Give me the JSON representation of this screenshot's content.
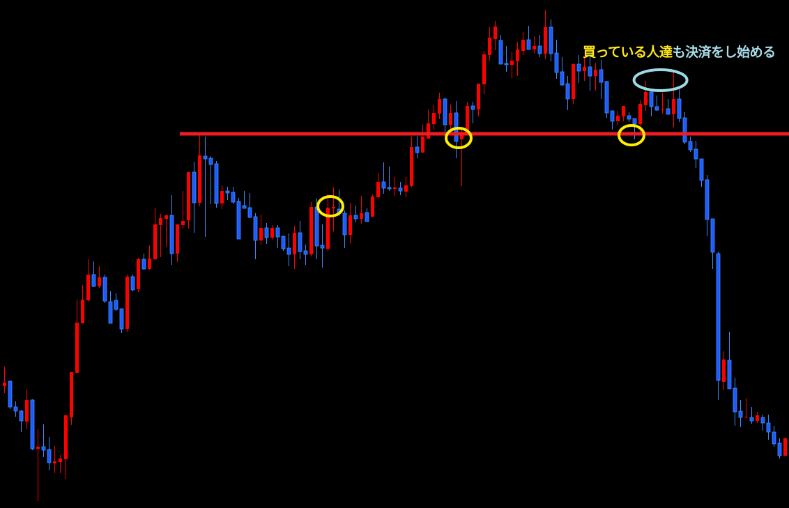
{
  "chart_data": {
    "type": "candlestick",
    "background": "#000000",
    "colors": {
      "up": "#FF0000",
      "down_fill": "#1E5BFF",
      "down_edge": "#3C8CFF",
      "level_line": "#EE1C25",
      "marker_yellow": "#FFEE00",
      "marker_lightblue": "#9ED8E6"
    },
    "grid": false,
    "axes_visible": false,
    "ylim": [
      0,
      72.9
    ],
    "candles": [
      [
        17.5,
        20.3,
        16.5,
        18.0
      ],
      [
        18.2,
        18.3,
        14.2,
        14.5
      ],
      [
        14.5,
        15.3,
        13.1,
        13.9
      ],
      [
        13.9,
        14.1,
        10.9,
        12.5
      ],
      [
        12.4,
        17.0,
        11.3,
        15.5
      ],
      [
        15.5,
        15.6,
        8.3,
        8.5
      ],
      [
        8.5,
        11.3,
        1.0,
        8.8
      ],
      [
        8.8,
        12.0,
        7.3,
        8.3
      ],
      [
        8.4,
        10.2,
        5.4,
        6.5
      ],
      [
        6.4,
        8.9,
        5.0,
        6.7
      ],
      [
        6.6,
        7.6,
        5.0,
        7.1
      ],
      [
        7.0,
        13.4,
        4.2,
        13.3
      ],
      [
        13.0,
        19.5,
        11.9,
        19.5
      ],
      [
        19.4,
        29.9,
        19.4,
        26.6
      ],
      [
        26.5,
        32.0,
        26.5,
        29.9
      ],
      [
        29.8,
        35.7,
        29.6,
        33.5
      ],
      [
        33.5,
        35.4,
        31.7,
        31.8
      ],
      [
        31.8,
        34.7,
        31.6,
        33.1
      ],
      [
        33.1,
        33.5,
        29.4,
        29.7
      ],
      [
        29.6,
        31.1,
        26.5,
        26.5
      ],
      [
        29.8,
        30.8,
        28.3,
        28.5
      ],
      [
        28.6,
        28.6,
        25.1,
        25.7
      ],
      [
        25.7,
        33.5,
        25.3,
        33.2
      ],
      [
        33.2,
        33.5,
        31.1,
        31.3
      ],
      [
        31.4,
        35.9,
        31.0,
        35.7
      ],
      [
        35.7,
        36.5,
        34.2,
        34.3
      ],
      [
        34.3,
        37.7,
        34.2,
        35.8
      ],
      [
        35.7,
        43.1,
        35.6,
        40.7
      ],
      [
        40.6,
        42.2,
        36.0,
        41.6
      ],
      [
        41.5,
        42.1,
        37.5,
        42.0
      ],
      [
        42.0,
        44.9,
        34.9,
        36.5
      ],
      [
        36.5,
        40.7,
        35.3,
        40.7
      ],
      [
        40.6,
        45.5,
        40.1,
        41.2
      ],
      [
        41.3,
        48.2,
        40.1,
        48.2
      ],
      [
        48.2,
        49.7,
        39.5,
        43.8
      ],
      [
        43.8,
        53.5,
        43.3,
        50.6
      ],
      [
        50.5,
        53.3,
        38.9,
        50.1
      ],
      [
        50.2,
        50.5,
        43.6,
        49.3
      ],
      [
        49.4,
        49.8,
        43.1,
        43.7
      ],
      [
        43.7,
        46.3,
        42.9,
        45.5
      ],
      [
        45.5,
        46.1,
        44.2,
        45.2
      ],
      [
        45.3,
        46.1,
        43.6,
        43.9
      ],
      [
        44.0,
        44.5,
        38.6,
        38.6
      ],
      [
        43.4,
        45.5,
        43.0,
        43.0
      ],
      [
        43.1,
        45.2,
        41.6,
        41.7
      ],
      [
        41.8,
        42.3,
        35.7,
        38.4
      ],
      [
        38.4,
        42.1,
        37.8,
        40.2
      ],
      [
        40.2,
        40.9,
        37.9,
        38.8
      ],
      [
        38.8,
        40.6,
        38.5,
        40.2
      ],
      [
        40.2,
        40.6,
        37.3,
        38.9
      ],
      [
        39.0,
        39.1,
        36.9,
        37.2
      ],
      [
        37.3,
        39.4,
        34.7,
        36.4
      ],
      [
        36.4,
        40.5,
        34.3,
        39.5
      ],
      [
        39.5,
        41.2,
        35.7,
        36.8
      ],
      [
        36.9,
        37.8,
        34.9,
        36.4
      ],
      [
        36.4,
        43.9,
        36.1,
        43.2
      ],
      [
        43.2,
        44.4,
        35.7,
        37.6
      ],
      [
        37.7,
        40.7,
        34.5,
        37.3
      ],
      [
        37.2,
        45.1,
        36.9,
        43.1
      ],
      [
        43.0,
        46.0,
        39.7,
        43.2
      ],
      [
        42.9,
        45.7,
        41.9,
        42.3
      ],
      [
        42.3,
        42.7,
        37.3,
        39.2
      ],
      [
        39.2,
        43.8,
        38.0,
        42.0
      ],
      [
        42.0,
        43.4,
        41.0,
        41.5
      ],
      [
        41.5,
        44.8,
        40.8,
        42.3
      ],
      [
        42.4,
        43.0,
        41.1,
        41.1
      ],
      [
        41.8,
        45.0,
        41.8,
        44.7
      ],
      [
        44.6,
        48.1,
        44.4,
        46.8
      ],
      [
        46.8,
        49.6,
        45.1,
        45.9
      ],
      [
        46.0,
        49.0,
        45.5,
        45.8
      ],
      [
        45.8,
        47.5,
        44.8,
        46.0
      ],
      [
        45.9,
        46.8,
        44.9,
        45.5
      ],
      [
        45.4,
        47.5,
        44.6,
        46.3
      ],
      [
        46.2,
        53.3,
        46.0,
        51.8
      ],
      [
        51.8,
        53.4,
        50.2,
        51.0
      ],
      [
        51.0,
        55.0,
        51.0,
        53.3
      ],
      [
        53.0,
        57.2,
        53.0,
        55.2
      ],
      [
        55.1,
        57.8,
        54.3,
        56.7
      ],
      [
        56.6,
        59.6,
        55.8,
        58.7
      ],
      [
        58.7,
        58.9,
        53.7,
        55.0
      ],
      [
        55.0,
        57.9,
        53.7,
        56.7
      ],
      [
        56.7,
        58.4,
        50.2,
        52.6
      ],
      [
        52.9,
        54.6,
        46.2,
        53.7
      ],
      [
        53.9,
        58.3,
        53.7,
        57.7
      ],
      [
        57.7,
        58.3,
        55.2,
        57.2
      ],
      [
        57.2,
        60.9,
        56.2,
        60.9
      ],
      [
        60.8,
        65.6,
        59.4,
        65.1
      ],
      [
        65.0,
        69.0,
        64.2,
        67.5
      ],
      [
        67.3,
        69.9,
        65.7,
        69.1
      ],
      [
        67.1,
        67.9,
        63.7,
        63.7
      ],
      [
        63.8,
        66.3,
        62.6,
        63.6
      ],
      [
        63.6,
        65.4,
        61.7,
        64.2
      ],
      [
        64.1,
        66.9,
        62.0,
        65.8
      ],
      [
        65.6,
        68.3,
        65.0,
        67.2
      ],
      [
        67.2,
        69.2,
        65.8,
        65.8
      ],
      [
        65.8,
        67.7,
        65.2,
        66.3
      ],
      [
        66.3,
        67.9,
        64.7,
        65.2
      ],
      [
        65.2,
        71.5,
        64.4,
        69.0
      ],
      [
        69.0,
        70.1,
        64.1,
        65.2
      ],
      [
        65.3,
        67.2,
        61.6,
        62.5
      ],
      [
        62.6,
        64.7,
        60.6,
        60.7
      ],
      [
        60.9,
        62.0,
        57.1,
        58.7
      ],
      [
        58.7,
        63.8,
        58.0,
        63.7
      ],
      [
        63.7,
        65.0,
        61.0,
        62.7
      ],
      [
        62.7,
        64.6,
        61.3,
        63.3
      ],
      [
        63.3,
        65.0,
        59.9,
        62.0
      ],
      [
        62.0,
        63.9,
        59.9,
        62.9
      ],
      [
        62.9,
        64.3,
        58.7,
        61.1
      ],
      [
        61.2,
        61.3,
        56.0,
        56.7
      ],
      [
        57.0,
        57.0,
        54.3,
        55.5
      ],
      [
        55.5,
        57.0,
        55.0,
        56.3
      ],
      [
        56.2,
        57.7,
        55.5,
        57.7
      ],
      [
        56.3,
        56.8,
        55.4,
        55.8
      ],
      [
        55.9,
        55.9,
        52.9,
        55.1
      ],
      [
        55.1,
        58.6,
        53.6,
        58.0
      ],
      [
        57.8,
        61.3,
        57.0,
        59.7
      ],
      [
        59.7,
        60.1,
        56.2,
        57.6
      ],
      [
        57.6,
        59.2,
        57.0,
        57.1
      ],
      [
        57.2,
        59.6,
        56.6,
        57.3
      ],
      [
        57.3,
        58.7,
        56.5,
        56.5
      ],
      [
        56.5,
        62.5,
        54.6,
        58.7
      ],
      [
        58.7,
        60.1,
        55.4,
        55.9
      ],
      [
        56.0,
        56.8,
        52.2,
        52.5
      ],
      [
        52.6,
        53.3,
        51.1,
        51.4
      ],
      [
        51.5,
        52.7,
        48.8,
        50.1
      ],
      [
        50.1,
        50.1,
        46.1,
        47.0
      ],
      [
        47.1,
        47.8,
        39.0,
        41.4
      ],
      [
        41.5,
        41.5,
        34.3,
        36.7
      ],
      [
        36.5,
        36.8,
        15.5,
        18.3
      ],
      [
        18.1,
        22.5,
        16.9,
        21.3
      ],
      [
        21.2,
        25.3,
        17.1,
        17.1
      ],
      [
        17.2,
        18.7,
        11.8,
        13.8
      ],
      [
        13.9,
        15.5,
        11.6,
        13.0
      ],
      [
        13.0,
        15.8,
        12.9,
        13.1
      ],
      [
        13.0,
        14.5,
        12.1,
        12.5
      ],
      [
        12.5,
        13.8,
        12.2,
        13.3
      ],
      [
        13.0,
        13.4,
        11.1,
        12.2
      ],
      [
        12.2,
        13.4,
        9.8,
        10.9
      ],
      [
        10.9,
        11.8,
        8.8,
        9.2
      ],
      [
        9.3,
        10.0,
        7.1,
        7.5
      ],
      [
        7.5,
        10.1,
        7.5,
        10.0
      ]
    ],
    "candle_format": [
      "open",
      "high",
      "low",
      "close"
    ],
    "level_line": {
      "value": 53.7,
      "from_candle": 31.5
    },
    "markers": [
      {
        "shape": "circle",
        "color": "yellow",
        "candle": 58.5,
        "value": 43.3
      },
      {
        "shape": "circle",
        "color": "yellow",
        "candle": 81.5,
        "value": 53.1
      },
      {
        "shape": "circle",
        "color": "yellow",
        "candle": 112.5,
        "value": 53.5
      },
      {
        "shape": "ellipse",
        "color": "lightblue",
        "candle": 117.7,
        "value": 61.4
      }
    ],
    "annotation": {
      "part1": "買っている人達",
      "part1_color": "#FFE81A",
      "part2": "も決済をし始める",
      "part2_color": "#A8DCE8"
    }
  }
}
